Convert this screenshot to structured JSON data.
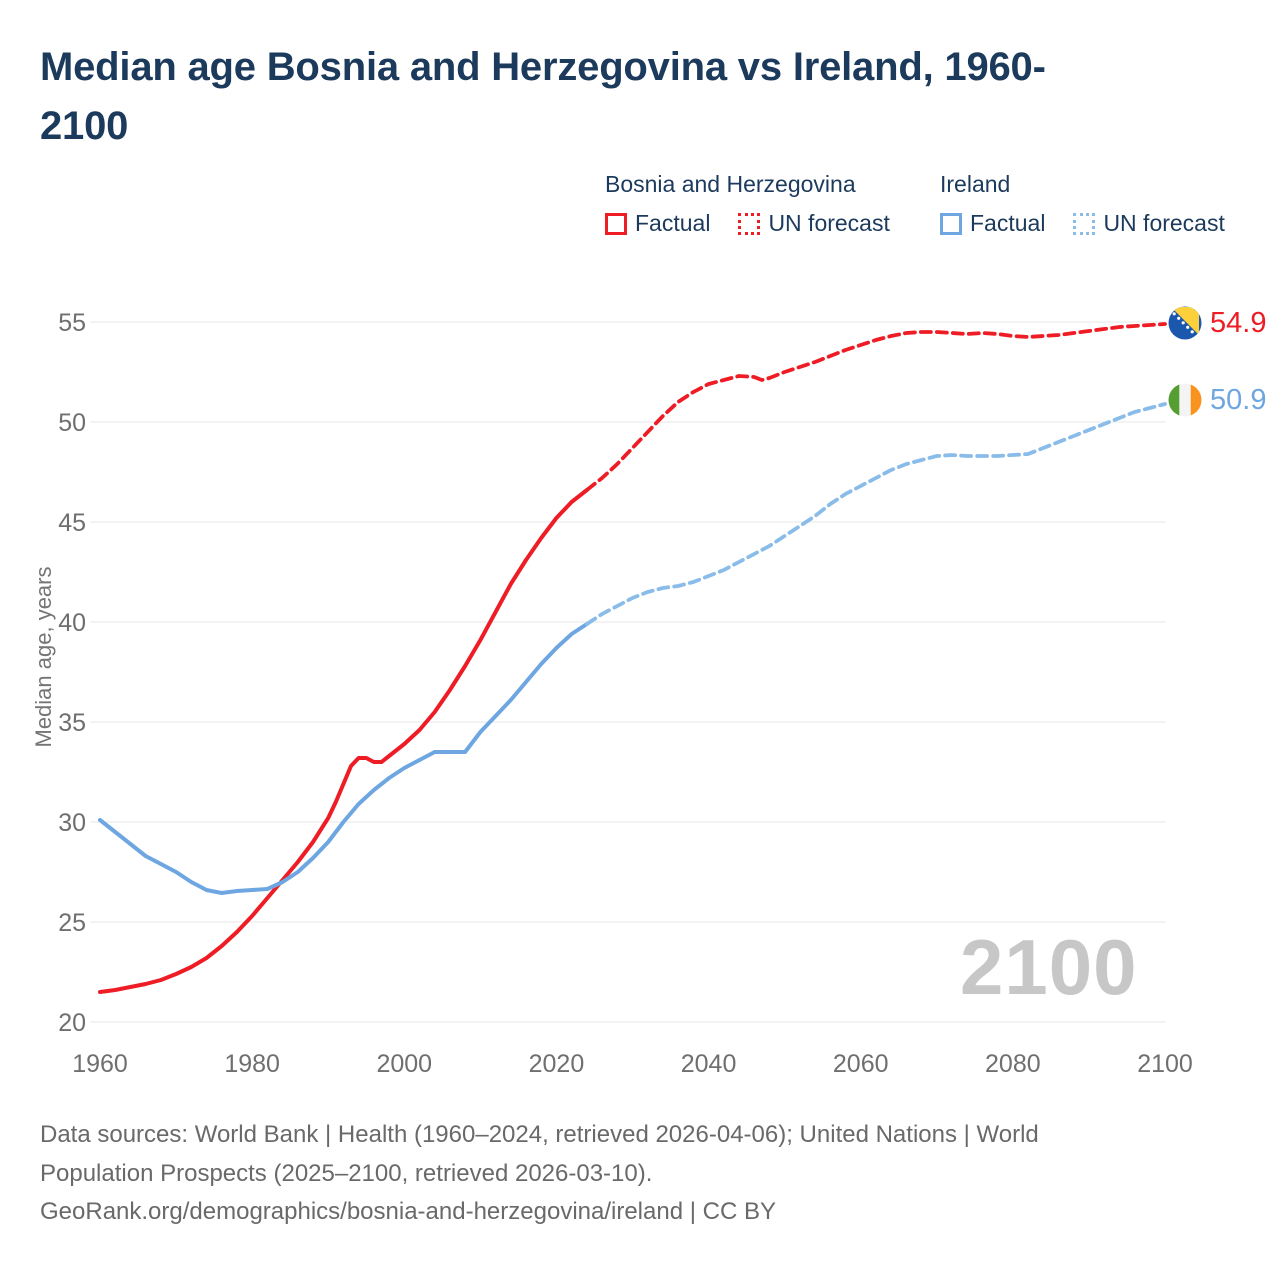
{
  "header": {
    "title_lines": [
      "Median age Bosnia and Herzegovina vs Ireland, 1960-",
      "2100"
    ]
  },
  "legend": {
    "groups": [
      {
        "name": "Bosnia and Herzegovina",
        "items": [
          {
            "label": "Factual",
            "style": "solid"
          },
          {
            "label": "UN forecast",
            "style": "dotted"
          }
        ]
      },
      {
        "name": "Ireland",
        "items": [
          {
            "label": "Factual",
            "style": "solid"
          },
          {
            "label": "UN forecast",
            "style": "dotted"
          }
        ]
      }
    ]
  },
  "chart": {
    "y_axis_title": "Median age, years",
    "watermark": "2100",
    "end_labels": [
      {
        "value": "54.9",
        "flag": "bosnia-and-herzegovina"
      },
      {
        "value": "50.9",
        "flag": "ireland"
      }
    ]
  },
  "colors": {
    "bosnia": "#ee1c25",
    "ireland": "#6ea6e1",
    "ireland_forecast": "#8abce9",
    "navy": "#1b3a5c",
    "grid": "#e7e7e7",
    "tick": "#6f6f6f",
    "axis_title": "#757575",
    "watermark": "#c7c7c7",
    "footer": "#696969"
  },
  "chart_data": {
    "type": "line",
    "title": "Median age Bosnia and Herzegovina vs Ireland, 1960-2100",
    "xlabel": "",
    "ylabel": "Median age, years",
    "x_range": [
      1960,
      2100
    ],
    "y_range": [
      20,
      55
    ],
    "x_ticks": [
      1960,
      1980,
      2000,
      2020,
      2040,
      2060,
      2080,
      2100
    ],
    "y_ticks": [
      20,
      25,
      30,
      35,
      40,
      45,
      50,
      55
    ],
    "grid": "horizontal",
    "legend_position": "top-right",
    "end_values": {
      "bosnia_and_herzegovina": 54.9,
      "ireland": 50.9
    },
    "series": [
      {
        "id": "bosnia-factual",
        "name": "Bosnia and Herzegovina — Factual",
        "style": "solid",
        "color_key": "bosnia",
        "points": [
          [
            1960,
            21.5
          ],
          [
            1962,
            21.6
          ],
          [
            1964,
            21.75
          ],
          [
            1966,
            21.9
          ],
          [
            1968,
            22.1
          ],
          [
            1970,
            22.4
          ],
          [
            1972,
            22.75
          ],
          [
            1974,
            23.2
          ],
          [
            1976,
            23.8
          ],
          [
            1978,
            24.5
          ],
          [
            1980,
            25.3
          ],
          [
            1982,
            26.2
          ],
          [
            1984,
            27.1
          ],
          [
            1986,
            28.0
          ],
          [
            1988,
            29.0
          ],
          [
            1990,
            30.2
          ],
          [
            1991,
            31.0
          ],
          [
            1992,
            31.9
          ],
          [
            1993,
            32.8
          ],
          [
            1994,
            33.2
          ],
          [
            1995,
            33.2
          ],
          [
            1996,
            33.0
          ],
          [
            1997,
            33.0
          ],
          [
            1998,
            33.3
          ],
          [
            2000,
            33.9
          ],
          [
            2002,
            34.6
          ],
          [
            2004,
            35.5
          ],
          [
            2006,
            36.6
          ],
          [
            2008,
            37.8
          ],
          [
            2010,
            39.1
          ],
          [
            2012,
            40.5
          ],
          [
            2014,
            41.9
          ],
          [
            2016,
            43.1
          ],
          [
            2018,
            44.2
          ],
          [
            2020,
            45.2
          ],
          [
            2022,
            46.0
          ],
          [
            2024,
            46.6
          ]
        ]
      },
      {
        "id": "bosnia-forecast",
        "name": "Bosnia and Herzegovina — UN forecast",
        "style": "dashed",
        "color_key": "bosnia",
        "points": [
          [
            2024,
            46.6
          ],
          [
            2026,
            47.2
          ],
          [
            2028,
            47.9
          ],
          [
            2030,
            48.7
          ],
          [
            2032,
            49.5
          ],
          [
            2034,
            50.3
          ],
          [
            2036,
            51.0
          ],
          [
            2038,
            51.5
          ],
          [
            2040,
            51.9
          ],
          [
            2042,
            52.1
          ],
          [
            2044,
            52.3
          ],
          [
            2046,
            52.25
          ],
          [
            2047,
            52.1
          ],
          [
            2048,
            52.2
          ],
          [
            2050,
            52.5
          ],
          [
            2052,
            52.75
          ],
          [
            2054,
            53.0
          ],
          [
            2056,
            53.3
          ],
          [
            2058,
            53.6
          ],
          [
            2060,
            53.85
          ],
          [
            2062,
            54.1
          ],
          [
            2064,
            54.3
          ],
          [
            2066,
            54.45
          ],
          [
            2068,
            54.5
          ],
          [
            2070,
            54.5
          ],
          [
            2072,
            54.45
          ],
          [
            2074,
            54.4
          ],
          [
            2076,
            54.45
          ],
          [
            2078,
            54.4
          ],
          [
            2080,
            54.3
          ],
          [
            2082,
            54.25
          ],
          [
            2084,
            54.3
          ],
          [
            2086,
            54.35
          ],
          [
            2088,
            54.45
          ],
          [
            2090,
            54.55
          ],
          [
            2092,
            54.65
          ],
          [
            2094,
            54.75
          ],
          [
            2096,
            54.8
          ],
          [
            2098,
            54.85
          ],
          [
            2100,
            54.9
          ]
        ]
      },
      {
        "id": "ireland-factual",
        "name": "Ireland — Factual",
        "style": "solid",
        "color_key": "ireland",
        "points": [
          [
            1960,
            30.1
          ],
          [
            1962,
            29.5
          ],
          [
            1964,
            28.9
          ],
          [
            1966,
            28.3
          ],
          [
            1968,
            27.9
          ],
          [
            1970,
            27.5
          ],
          [
            1972,
            27.0
          ],
          [
            1974,
            26.6
          ],
          [
            1976,
            26.45
          ],
          [
            1978,
            26.55
          ],
          [
            1980,
            26.6
          ],
          [
            1982,
            26.65
          ],
          [
            1984,
            27.0
          ],
          [
            1986,
            27.5
          ],
          [
            1988,
            28.2
          ],
          [
            1990,
            29.0
          ],
          [
            1992,
            30.0
          ],
          [
            1994,
            30.9
          ],
          [
            1996,
            31.6
          ],
          [
            1998,
            32.2
          ],
          [
            2000,
            32.7
          ],
          [
            2002,
            33.1
          ],
          [
            2004,
            33.5
          ],
          [
            2006,
            33.5
          ],
          [
            2008,
            33.5
          ],
          [
            2010,
            34.5
          ],
          [
            2012,
            35.3
          ],
          [
            2014,
            36.1
          ],
          [
            2016,
            37.0
          ],
          [
            2018,
            37.9
          ],
          [
            2020,
            38.7
          ],
          [
            2022,
            39.4
          ],
          [
            2024,
            39.9
          ]
        ]
      },
      {
        "id": "ireland-forecast",
        "name": "Ireland — UN forecast",
        "style": "dashed",
        "color_key": "ireland_forecast",
        "points": [
          [
            2024,
            39.9
          ],
          [
            2026,
            40.4
          ],
          [
            2028,
            40.8
          ],
          [
            2030,
            41.2
          ],
          [
            2032,
            41.5
          ],
          [
            2034,
            41.7
          ],
          [
            2036,
            41.8
          ],
          [
            2038,
            42.0
          ],
          [
            2040,
            42.3
          ],
          [
            2042,
            42.6
          ],
          [
            2044,
            43.0
          ],
          [
            2046,
            43.4
          ],
          [
            2048,
            43.8
          ],
          [
            2050,
            44.3
          ],
          [
            2052,
            44.8
          ],
          [
            2054,
            45.3
          ],
          [
            2056,
            45.9
          ],
          [
            2058,
            46.4
          ],
          [
            2060,
            46.8
          ],
          [
            2062,
            47.2
          ],
          [
            2064,
            47.6
          ],
          [
            2066,
            47.9
          ],
          [
            2068,
            48.1
          ],
          [
            2070,
            48.3
          ],
          [
            2072,
            48.35
          ],
          [
            2074,
            48.3
          ],
          [
            2076,
            48.3
          ],
          [
            2078,
            48.3
          ],
          [
            2080,
            48.35
          ],
          [
            2082,
            48.4
          ],
          [
            2084,
            48.7
          ],
          [
            2086,
            49.0
          ],
          [
            2088,
            49.3
          ],
          [
            2090,
            49.6
          ],
          [
            2092,
            49.9
          ],
          [
            2094,
            50.2
          ],
          [
            2096,
            50.5
          ],
          [
            2098,
            50.7
          ],
          [
            2100,
            50.9
          ]
        ]
      }
    ]
  },
  "footer": {
    "lines": [
      "Data sources: World Bank | Health (1960–2024, retrieved 2026-04-06); United Nations | World",
      "Population Prospects (2025–2100, retrieved 2026-03-10).",
      "GeoRank.org/demographics/bosnia-and-herzegovina/ireland | CC BY"
    ]
  }
}
